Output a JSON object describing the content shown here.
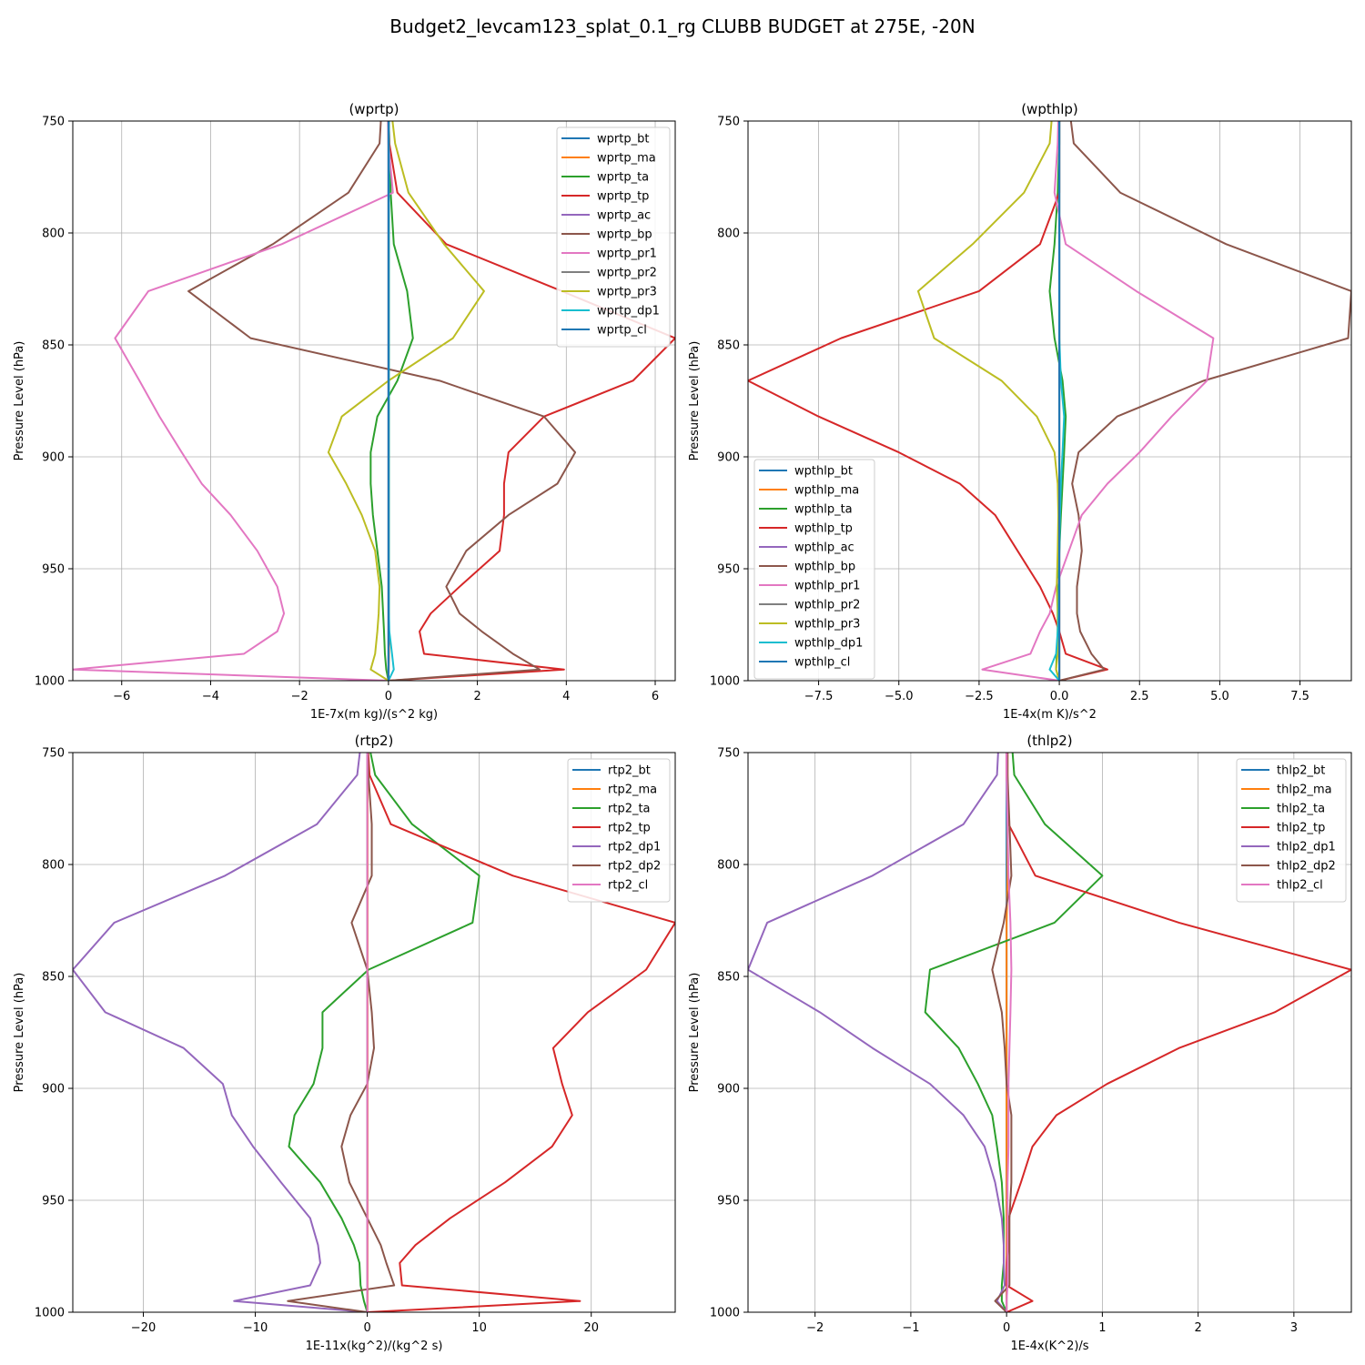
{
  "figure": {
    "title": "Budget2_levcam123_splat_0.1_rg CLUBB BUDGET at 275E, -20N"
  },
  "chart_data": [
    {
      "type": "line",
      "title": "(wprtp)",
      "xlabel": "1E-7x(m kg)/(s^2 kg)",
      "ylabel": "Pressure Level (hPa)",
      "xlim": [
        -7.1,
        6.45
      ],
      "ylim": [
        1000,
        750
      ],
      "xticks": [
        -6,
        -4,
        -2,
        0,
        2,
        4,
        6
      ],
      "xtick_labels": [
        "−6",
        "−4",
        "−2",
        "0",
        "2",
        "4",
        "6"
      ],
      "yticks": [
        750,
        800,
        850,
        900,
        950,
        1000
      ],
      "ytick_labels": [
        "750",
        "800",
        "850",
        "900",
        "950",
        "1000"
      ],
      "grid": true,
      "legend": "top-right",
      "levels": [
        1000,
        995,
        988,
        978,
        970,
        958,
        942,
        926,
        912,
        898,
        882,
        866,
        847,
        826,
        805,
        782,
        760,
        743
      ],
      "series": [
        {
          "name": "wprtp_bt",
          "color": "#1f77b4",
          "values": [
            0,
            0.005,
            0.01,
            0.01,
            0.01,
            0.01,
            0.01,
            0.01,
            0.01,
            0.01,
            0.01,
            0.01,
            0.01,
            0.01,
            0.01,
            0.01,
            0.01,
            0.01
          ]
        },
        {
          "name": "wprtp_ma",
          "color": "#ff7f0e",
          "values": [
            0,
            0.005,
            0.01,
            0.01,
            0.01,
            0.01,
            0.01,
            0.01,
            0.01,
            0.01,
            0.01,
            0.01,
            0.01,
            0.01,
            0.01,
            0.01,
            0.01,
            0.01
          ]
        },
        {
          "name": "wprtp_ta",
          "color": "#2ca02c",
          "values": [
            0,
            -0.05,
            -0.08,
            -0.1,
            -0.12,
            -0.15,
            -0.25,
            -0.35,
            -0.4,
            -0.4,
            -0.25,
            0.2,
            0.55,
            0.42,
            0.12,
            0.05,
            0.02,
            0.0
          ]
        },
        {
          "name": "wprtp_tp",
          "color": "#d62728",
          "values": [
            0,
            3.95,
            0.8,
            0.7,
            0.95,
            1.6,
            2.5,
            2.6,
            2.6,
            2.7,
            3.5,
            5.5,
            6.45,
            3.9,
            1.3,
            0.2,
            0.02,
            0.0
          ]
        },
        {
          "name": "wprtp_ac",
          "color": "#9467bd",
          "values": [
            0,
            0,
            0,
            0,
            0,
            0,
            0,
            0,
            0,
            0,
            0,
            0,
            0,
            0,
            0,
            0,
            0,
            0
          ]
        },
        {
          "name": "wprtp_bp",
          "color": "#8c564b",
          "values": [
            0,
            3.4,
            2.8,
            2.1,
            1.6,
            1.3,
            1.75,
            2.7,
            3.8,
            4.2,
            3.5,
            1.15,
            -3.1,
            -4.5,
            -2.6,
            -0.9,
            -0.2,
            -0.15
          ]
        },
        {
          "name": "wprtp_pr1",
          "color": "#e377c2",
          "values": [
            0,
            -7.1,
            -3.25,
            -2.5,
            -2.35,
            -2.5,
            -2.95,
            -3.55,
            -4.2,
            -4.65,
            -5.15,
            -5.6,
            -6.15,
            -5.4,
            -2.4,
            0.1,
            0.0,
            -0.02
          ]
        },
        {
          "name": "wprtp_pr2",
          "color": "#7f7f7f",
          "values": [
            0,
            0,
            0,
            0,
            0,
            0,
            0,
            0,
            0,
            0,
            0,
            0,
            0,
            0,
            0,
            0,
            0,
            0
          ]
        },
        {
          "name": "wprtp_pr3",
          "color": "#bcbd22",
          "values": [
            0,
            -0.4,
            -0.3,
            -0.25,
            -0.22,
            -0.2,
            -0.3,
            -0.6,
            -0.95,
            -1.35,
            -1.05,
            0.0,
            1.45,
            2.15,
            1.25,
            0.45,
            0.15,
            0.05
          ]
        },
        {
          "name": "wprtp_dp1",
          "color": "#17becf",
          "values": [
            0,
            0.12,
            0.08,
            0.02,
            0.01,
            0.01,
            0.01,
            0.01,
            0.01,
            0.01,
            0.01,
            0.01,
            0.01,
            0.01,
            0.01,
            0.01,
            0.01,
            0.01
          ]
        },
        {
          "name": "wprtp_cl",
          "color": "#1f77b4",
          "values": [
            0,
            0,
            0,
            0,
            0,
            0,
            0,
            0,
            0,
            0,
            0,
            0,
            0,
            0,
            0,
            0,
            0,
            0
          ]
        }
      ]
    },
    {
      "type": "line",
      "title": "(wpthlp)",
      "xlabel": "1E-4x(m K)/s^2",
      "ylabel": "Pressure Level (hPa)",
      "xlim": [
        -9.7,
        9.1
      ],
      "ylim": [
        1000,
        750
      ],
      "xticks": [
        -7.5,
        -5.0,
        -2.5,
        0.0,
        2.5,
        5.0,
        7.5
      ],
      "xtick_labels": [
        "−7.5",
        "−5.0",
        "−2.5",
        "0.0",
        "2.5",
        "5.0",
        "7.5"
      ],
      "yticks": [
        750,
        800,
        850,
        900,
        950,
        1000
      ],
      "ytick_labels": [
        "750",
        "800",
        "850",
        "900",
        "950",
        "1000"
      ],
      "grid": true,
      "legend": "bottom-left",
      "levels": [
        1000,
        995,
        988,
        978,
        970,
        958,
        942,
        926,
        912,
        898,
        882,
        866,
        847,
        826,
        805,
        782,
        760,
        743
      ],
      "series": [
        {
          "name": "wpthlp_bt",
          "color": "#1f77b4",
          "values": [
            0,
            0,
            0,
            0,
            0,
            0,
            0,
            0,
            0,
            0,
            0,
            0,
            0,
            0,
            0,
            0,
            0,
            0
          ]
        },
        {
          "name": "wpthlp_ma",
          "color": "#ff7f0e",
          "values": [
            0,
            0,
            0,
            0,
            0,
            0,
            0,
            0,
            0,
            0,
            0,
            0,
            0,
            0,
            0,
            0,
            0,
            0
          ]
        },
        {
          "name": "wpthlp_ta",
          "color": "#2ca02c",
          "values": [
            0,
            -0.1,
            -0.08,
            -0.05,
            -0.05,
            -0.03,
            0.0,
            0.05,
            0.1,
            0.15,
            0.2,
            0.1,
            -0.15,
            -0.3,
            -0.15,
            -0.05,
            0.0,
            0.0
          ]
        },
        {
          "name": "wpthlp_tp",
          "color": "#d62728",
          "values": [
            0,
            1.5,
            0.2,
            0.0,
            -0.2,
            -0.6,
            -1.3,
            -2.0,
            -3.1,
            -5.0,
            -7.5,
            -9.7,
            -6.8,
            -2.5,
            -0.6,
            0.0,
            0.0,
            0.0
          ]
        },
        {
          "name": "wpthlp_ac",
          "color": "#9467bd",
          "values": [
            0,
            0,
            0,
            0,
            0,
            0,
            0,
            0,
            0,
            0,
            0,
            0,
            0,
            0,
            0,
            0,
            0,
            0
          ]
        },
        {
          "name": "wpthlp_bp",
          "color": "#8c564b",
          "values": [
            0,
            1.4,
            1.0,
            0.65,
            0.55,
            0.55,
            0.7,
            0.6,
            0.4,
            0.6,
            1.8,
            4.5,
            9.0,
            9.1,
            5.2,
            1.9,
            0.45,
            0.3
          ]
        },
        {
          "name": "wpthlp_pr1",
          "color": "#e377c2",
          "values": [
            0,
            -2.4,
            -0.9,
            -0.6,
            -0.3,
            -0.1,
            0.3,
            0.7,
            1.5,
            2.5,
            3.5,
            4.6,
            4.8,
            2.4,
            0.2,
            -0.15,
            -0.05,
            -0.02
          ]
        },
        {
          "name": "wpthlp_pr2",
          "color": "#7f7f7f",
          "values": [
            0,
            0,
            0,
            0,
            0,
            0,
            0,
            0,
            0,
            0,
            0,
            0,
            0,
            0,
            0,
            0,
            0,
            0
          ]
        },
        {
          "name": "wpthlp_pr3",
          "color": "#bcbd22",
          "values": [
            0,
            -0.1,
            -0.05,
            -0.05,
            -0.05,
            -0.08,
            -0.05,
            -0.03,
            -0.05,
            -0.15,
            -0.7,
            -1.8,
            -3.9,
            -4.4,
            -2.7,
            -1.1,
            -0.3,
            -0.2
          ]
        },
        {
          "name": "wpthlp_dp1",
          "color": "#17becf",
          "values": [
            0,
            -0.3,
            -0.1,
            -0.05,
            -0.02,
            -0.01,
            0.0,
            0.02,
            0.05,
            0.1,
            0.15,
            0.05,
            0.0,
            0.0,
            0.0,
            0.0,
            0.0,
            0.0
          ]
        },
        {
          "name": "wpthlp_cl",
          "color": "#1f77b4",
          "values": [
            0,
            0,
            0,
            0,
            0,
            0,
            0,
            0,
            0,
            0,
            0,
            0,
            0,
            0,
            0,
            0,
            0,
            0
          ]
        }
      ]
    },
    {
      "type": "line",
      "title": "(rtp2)",
      "xlabel": "1E-11x(kg^2)/(kg^2 s)",
      "ylabel": "Pressure Level (hPa)",
      "xlim": [
        -26.3,
        27.5
      ],
      "ylim": [
        1000,
        750
      ],
      "xticks": [
        -20,
        -10,
        0,
        10,
        20
      ],
      "xtick_labels": [
        "−20",
        "−10",
        "0",
        "10",
        "20"
      ],
      "yticks": [
        750,
        800,
        850,
        900,
        950,
        1000
      ],
      "ytick_labels": [
        "750",
        "800",
        "850",
        "900",
        "950",
        "1000"
      ],
      "grid": true,
      "legend": "top-right",
      "levels": [
        1000,
        995,
        988,
        978,
        970,
        958,
        942,
        926,
        912,
        898,
        882,
        866,
        847,
        826,
        805,
        782,
        760,
        743
      ],
      "series": [
        {
          "name": "rtp2_bt",
          "color": "#1f77b4",
          "values": [
            0,
            0,
            0,
            0,
            0,
            0,
            0,
            0,
            0,
            0,
            0,
            0,
            0,
            0,
            0,
            0,
            0,
            0
          ]
        },
        {
          "name": "rtp2_ma",
          "color": "#ff7f0e",
          "values": [
            0,
            0.02,
            0.02,
            0.02,
            0.02,
            0.02,
            0.02,
            0.02,
            0.02,
            0.02,
            0.02,
            0.02,
            0.02,
            0.02,
            0.02,
            0.02,
            0.02,
            0.02
          ]
        },
        {
          "name": "rtp2_ta",
          "color": "#2ca02c",
          "values": [
            0,
            -0.3,
            -0.6,
            -0.7,
            -1.2,
            -2.3,
            -4.2,
            -7.0,
            -6.5,
            -4.8,
            -4.0,
            -4.0,
            0.1,
            9.4,
            10.0,
            4.0,
            0.7,
            0.0
          ]
        },
        {
          "name": "rtp2_tp",
          "color": "#d62728",
          "values": [
            0,
            19.0,
            3.1,
            2.9,
            4.3,
            7.4,
            12.3,
            16.5,
            18.3,
            17.4,
            16.6,
            19.7,
            24.9,
            27.5,
            13.0,
            2.1,
            0.2,
            0.0
          ]
        },
        {
          "name": "rtp2_dp1",
          "color": "#9467bd",
          "values": [
            0,
            -11.9,
            -5.1,
            -4.2,
            -4.4,
            -5.1,
            -7.7,
            -10.2,
            -12.1,
            -12.9,
            -16.4,
            -23.4,
            -26.3,
            -22.6,
            -12.7,
            -4.5,
            -0.9,
            -0.5
          ]
        },
        {
          "name": "rtp2_dp2",
          "color": "#8c564b",
          "values": [
            0,
            -7.1,
            2.4,
            1.7,
            1.2,
            0.0,
            -1.6,
            -2.3,
            -1.5,
            0.0,
            0.6,
            0.4,
            0.0,
            -1.4,
            0.4,
            0.4,
            0.1,
            0.0
          ]
        },
        {
          "name": "rtp2_cl",
          "color": "#e377c2",
          "values": [
            0,
            0,
            0,
            0,
            0,
            0,
            0,
            0,
            0,
            0,
            0,
            0,
            0,
            0,
            0,
            0,
            0,
            0
          ]
        }
      ]
    },
    {
      "type": "line",
      "title": "(thlp2)",
      "xlabel": "1E-4x(K^2)/s",
      "ylabel": "Pressure Level (hPa)",
      "xlim": [
        -2.7,
        3.6
      ],
      "ylim": [
        1000,
        750
      ],
      "xticks": [
        -2,
        -1,
        0,
        1,
        2,
        3
      ],
      "xtick_labels": [
        "−2",
        "−1",
        "0",
        "1",
        "2",
        "3"
      ],
      "yticks": [
        750,
        800,
        850,
        900,
        950,
        1000
      ],
      "ytick_labels": [
        "750",
        "800",
        "850",
        "900",
        "950",
        "1000"
      ],
      "grid": true,
      "legend": "top-right",
      "levels": [
        1000,
        995,
        988,
        978,
        970,
        958,
        942,
        926,
        912,
        898,
        882,
        866,
        847,
        826,
        805,
        782,
        760,
        743
      ],
      "series": [
        {
          "name": "thlp2_bt",
          "color": "#1f77b4",
          "values": [
            0,
            0,
            0,
            0,
            0,
            0,
            0,
            0,
            0,
            0,
            0,
            0,
            0,
            0,
            0,
            0,
            0,
            0
          ]
        },
        {
          "name": "thlp2_ma",
          "color": "#ff7f0e",
          "values": [
            0,
            0.0,
            0.0,
            0.0,
            0.0,
            0.0,
            0.0,
            0.0,
            0.0,
            0.0,
            0.0,
            0.0,
            0.0,
            0.0,
            0.01,
            0.01,
            0.01,
            0.01
          ]
        },
        {
          "name": "thlp2_ta",
          "color": "#2ca02c",
          "values": [
            0,
            -0.05,
            -0.05,
            -0.03,
            -0.03,
            -0.03,
            -0.05,
            -0.1,
            -0.15,
            -0.3,
            -0.5,
            -0.85,
            -0.8,
            0.5,
            1.0,
            0.4,
            0.08,
            0.05
          ]
        },
        {
          "name": "thlp2_tp",
          "color": "#d62728",
          "values": [
            0,
            0.27,
            0.0,
            0.0,
            0.02,
            0.02,
            0.15,
            0.27,
            0.52,
            1.05,
            1.8,
            2.8,
            3.6,
            1.8,
            0.3,
            0.02,
            0.0,
            0.0
          ]
        },
        {
          "name": "thlp2_dp1",
          "color": "#9467bd",
          "values": [
            0,
            -0.1,
            -0.02,
            -0.03,
            -0.03,
            -0.05,
            -0.12,
            -0.23,
            -0.45,
            -0.8,
            -1.4,
            -1.95,
            -2.7,
            -2.5,
            -1.4,
            -0.45,
            -0.1,
            -0.08
          ]
        },
        {
          "name": "thlp2_dp2",
          "color": "#8c564b",
          "values": [
            0,
            -0.12,
            0.03,
            0.03,
            0.03,
            0.03,
            0.05,
            0.05,
            0.05,
            0.0,
            -0.02,
            -0.05,
            -0.15,
            -0.03,
            0.05,
            0.03,
            0.01,
            0.01
          ]
        },
        {
          "name": "thlp2_cl",
          "color": "#e377c2",
          "values": [
            0,
            0.0,
            0.01,
            0.01,
            0.01,
            0.01,
            0.01,
            0.02,
            0.02,
            0.02,
            0.03,
            0.04,
            0.05,
            0.04,
            0.02,
            0.01,
            0.0,
            0.0
          ]
        }
      ]
    }
  ]
}
